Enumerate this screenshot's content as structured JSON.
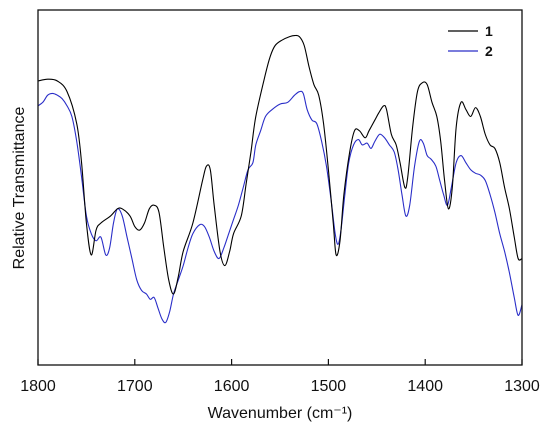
{
  "chart_data": {
    "type": "line",
    "xlabel": "Wavenumber (cm⁻¹)",
    "ylabel": "Relative Transmittance",
    "xlim": [
      1800,
      1300
    ],
    "x_reversed": true,
    "ylim": [
      0,
      100
    ],
    "y_ticks_shown": false,
    "grid": false,
    "legend": "top-right",
    "x_ticks": [
      {
        "value": 1800,
        "label": "1800"
      },
      {
        "value": 1700,
        "label": "1700"
      },
      {
        "value": 1600,
        "label": "1600"
      },
      {
        "value": 1500,
        "label": "1500"
      },
      {
        "value": 1400,
        "label": "1400"
      },
      {
        "value": 1300,
        "label": "1300"
      }
    ],
    "series": [
      {
        "name": "1",
        "color": "#000000",
        "points": [
          [
            1800,
            80
          ],
          [
            1790,
            80.5
          ],
          [
            1780,
            80
          ],
          [
            1770,
            77
          ],
          [
            1760,
            68
          ],
          [
            1755,
            57
          ],
          [
            1750,
            40
          ],
          [
            1745,
            31
          ],
          [
            1740,
            38
          ],
          [
            1735,
            40
          ],
          [
            1725,
            42
          ],
          [
            1718,
            44
          ],
          [
            1713,
            44
          ],
          [
            1705,
            42
          ],
          [
            1700,
            39
          ],
          [
            1695,
            38
          ],
          [
            1690,
            40
          ],
          [
            1685,
            44
          ],
          [
            1680,
            45
          ],
          [
            1675,
            43
          ],
          [
            1670,
            33
          ],
          [
            1665,
            24
          ],
          [
            1660,
            20
          ],
          [
            1655,
            25
          ],
          [
            1650,
            32
          ],
          [
            1640,
            40
          ],
          [
            1630,
            52
          ],
          [
            1626,
            56
          ],
          [
            1622,
            55
          ],
          [
            1618,
            45
          ],
          [
            1612,
            32
          ],
          [
            1607,
            28
          ],
          [
            1602,
            32
          ],
          [
            1598,
            37
          ],
          [
            1590,
            42
          ],
          [
            1585,
            51
          ],
          [
            1580,
            60
          ],
          [
            1575,
            70
          ],
          [
            1565,
            82
          ],
          [
            1560,
            87
          ],
          [
            1555,
            90
          ],
          [
            1548,
            91.5
          ],
          [
            1540,
            92.5
          ],
          [
            1535,
            92.8
          ],
          [
            1530,
            92.5
          ],
          [
            1525,
            90
          ],
          [
            1520,
            84
          ],
          [
            1515,
            79
          ],
          [
            1510,
            76
          ],
          [
            1505,
            68
          ],
          [
            1500,
            55
          ],
          [
            1495,
            40
          ],
          [
            1492,
            31
          ],
          [
            1488,
            35
          ],
          [
            1484,
            48
          ],
          [
            1478,
            60
          ],
          [
            1473,
            66
          ],
          [
            1468,
            66
          ],
          [
            1462,
            64
          ],
          [
            1458,
            66
          ],
          [
            1452,
            69
          ],
          [
            1448,
            71
          ],
          [
            1443,
            73
          ],
          [
            1440,
            72
          ],
          [
            1435,
            65
          ],
          [
            1430,
            62
          ],
          [
            1426,
            57
          ],
          [
            1421,
            50
          ],
          [
            1418,
            53
          ],
          [
            1413,
            67
          ],
          [
            1408,
            77
          ],
          [
            1403,
            79.5
          ],
          [
            1398,
            79
          ],
          [
            1393,
            74
          ],
          [
            1388,
            70
          ],
          [
            1384,
            63
          ],
          [
            1380,
            52
          ],
          [
            1376,
            44
          ],
          [
            1372,
            50
          ],
          [
            1368,
            67
          ],
          [
            1363,
            74
          ],
          [
            1358,
            72
          ],
          [
            1353,
            70
          ],
          [
            1348,
            72.5
          ],
          [
            1343,
            70
          ],
          [
            1338,
            65
          ],
          [
            1333,
            62
          ],
          [
            1328,
            61
          ],
          [
            1323,
            57
          ],
          [
            1318,
            50
          ],
          [
            1313,
            44
          ],
          [
            1308,
            36
          ],
          [
            1304,
            30
          ],
          [
            1300,
            30
          ]
        ]
      },
      {
        "name": "2",
        "color": "#2a2ec8",
        "points": [
          [
            1800,
            73
          ],
          [
            1795,
            74
          ],
          [
            1790,
            76
          ],
          [
            1785,
            76.5
          ],
          [
            1780,
            76
          ],
          [
            1775,
            75
          ],
          [
            1770,
            73
          ],
          [
            1765,
            70
          ],
          [
            1760,
            63
          ],
          [
            1755,
            53
          ],
          [
            1750,
            42
          ],
          [
            1745,
            37
          ],
          [
            1740,
            35
          ],
          [
            1735,
            36
          ],
          [
            1730,
            31
          ],
          [
            1726,
            33
          ],
          [
            1722,
            40
          ],
          [
            1718,
            44
          ],
          [
            1713,
            42
          ],
          [
            1708,
            36
          ],
          [
            1703,
            30
          ],
          [
            1698,
            24
          ],
          [
            1693,
            21
          ],
          [
            1688,
            20
          ],
          [
            1684,
            18.5
          ],
          [
            1680,
            19
          ],
          [
            1676,
            16
          ],
          [
            1672,
            13
          ],
          [
            1668,
            12
          ],
          [
            1664,
            15
          ],
          [
            1660,
            20
          ],
          [
            1655,
            24
          ],
          [
            1650,
            28
          ],
          [
            1645,
            33
          ],
          [
            1640,
            37
          ],
          [
            1633,
            39.5
          ],
          [
            1628,
            39
          ],
          [
            1623,
            36
          ],
          [
            1618,
            32
          ],
          [
            1613,
            30
          ],
          [
            1608,
            33
          ],
          [
            1603,
            37
          ],
          [
            1598,
            41
          ],
          [
            1593,
            45
          ],
          [
            1588,
            50
          ],
          [
            1583,
            55
          ],
          [
            1578,
            57
          ],
          [
            1575,
            62
          ],
          [
            1570,
            66
          ],
          [
            1565,
            70
          ],
          [
            1558,
            72
          ],
          [
            1550,
            73.5
          ],
          [
            1542,
            74
          ],
          [
            1535,
            76
          ],
          [
            1530,
            77
          ],
          [
            1526,
            76.5
          ],
          [
            1522,
            72
          ],
          [
            1517,
            69
          ],
          [
            1512,
            68
          ],
          [
            1507,
            63
          ],
          [
            1502,
            56
          ],
          [
            1497,
            46
          ],
          [
            1493,
            37
          ],
          [
            1490,
            34
          ],
          [
            1487,
            38
          ],
          [
            1483,
            48
          ],
          [
            1479,
            57
          ],
          [
            1474,
            62
          ],
          [
            1469,
            63.5
          ],
          [
            1465,
            62
          ],
          [
            1460,
            62.5
          ],
          [
            1456,
            61
          ],
          [
            1452,
            63
          ],
          [
            1447,
            65
          ],
          [
            1442,
            64
          ],
          [
            1437,
            62
          ],
          [
            1432,
            60
          ],
          [
            1428,
            55
          ],
          [
            1424,
            48
          ],
          [
            1420,
            42
          ],
          [
            1416,
            45
          ],
          [
            1411,
            56
          ],
          [
            1406,
            63
          ],
          [
            1402,
            62.5
          ],
          [
            1398,
            59
          ],
          [
            1394,
            58
          ],
          [
            1389,
            56
          ],
          [
            1385,
            52
          ],
          [
            1381,
            48
          ],
          [
            1377,
            45
          ],
          [
            1373,
            50
          ],
          [
            1368,
            57
          ],
          [
            1363,
            59
          ],
          [
            1358,
            57
          ],
          [
            1353,
            55
          ],
          [
            1348,
            54
          ],
          [
            1343,
            53.5
          ],
          [
            1338,
            52
          ],
          [
            1333,
            48
          ],
          [
            1328,
            43
          ],
          [
            1323,
            37
          ],
          [
            1318,
            32
          ],
          [
            1313,
            26
          ],
          [
            1308,
            19
          ],
          [
            1304,
            14
          ],
          [
            1300,
            17
          ]
        ]
      }
    ]
  }
}
